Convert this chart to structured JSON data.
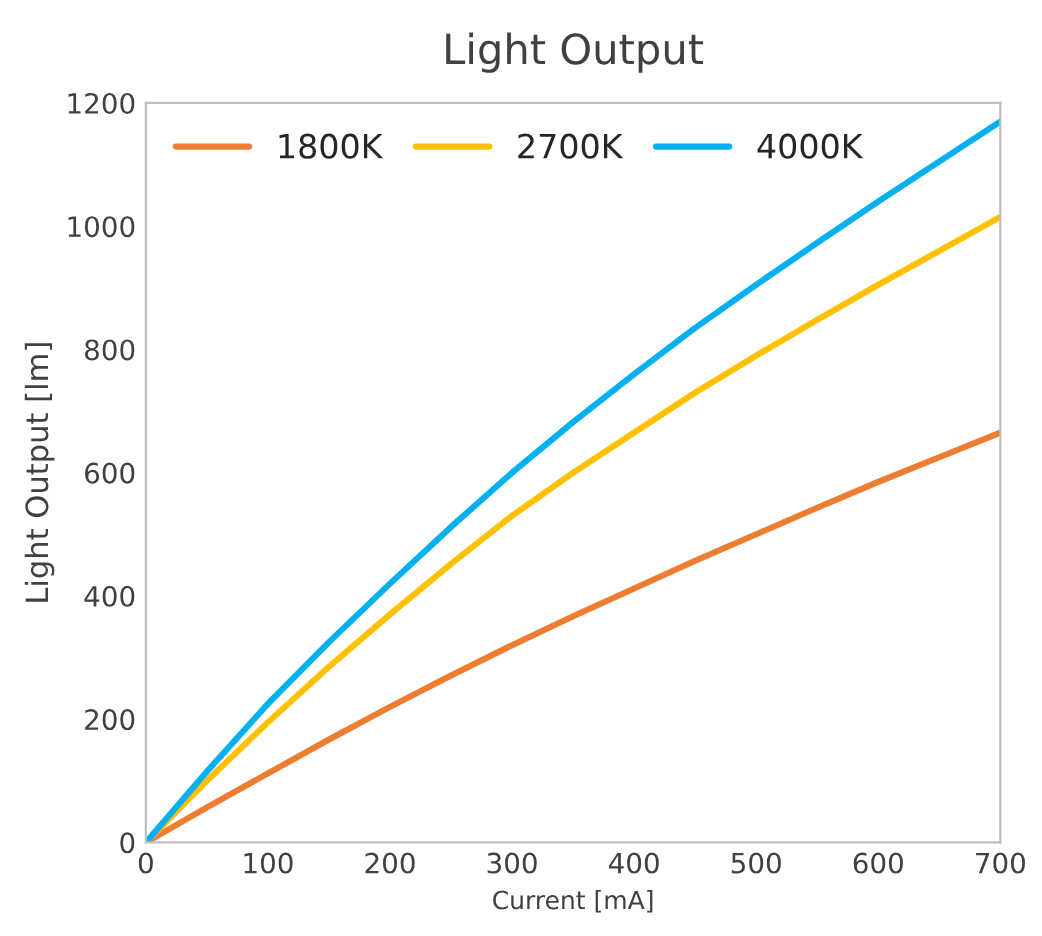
{
  "chart_data": {
    "type": "line",
    "title": "Light Output",
    "xlabel": "Current [mA]",
    "ylabel": "Light Output [lm]",
    "x": [
      0,
      50,
      100,
      150,
      200,
      250,
      300,
      350,
      400,
      450,
      500,
      550,
      600,
      650,
      700
    ],
    "series": [
      {
        "name": "1800K",
        "color": "#ed7d31",
        "values": [
          0,
          57,
          112,
          167,
          220,
          271,
          320,
          367,
          412,
          457,
          500,
          543,
          585,
          625,
          665
        ]
      },
      {
        "name": "2700K",
        "color": "#ffc000",
        "values": [
          0,
          100,
          195,
          285,
          370,
          452,
          530,
          600,
          665,
          730,
          790,
          848,
          905,
          960,
          1015
        ]
      },
      {
        "name": "4000K",
        "color": "#00b0f0",
        "values": [
          0,
          115,
          225,
          325,
          420,
          512,
          600,
          682,
          760,
          835,
          905,
          973,
          1040,
          1105,
          1170
        ]
      }
    ],
    "xlim": [
      0,
      700
    ],
    "xticks": [
      0,
      100,
      200,
      300,
      400,
      500,
      600,
      700
    ],
    "ylim": [
      0,
      1200
    ],
    "yticks": [
      0,
      200,
      400,
      600,
      800,
      1000,
      1200
    ],
    "legend": "top left",
    "grid": false
  }
}
